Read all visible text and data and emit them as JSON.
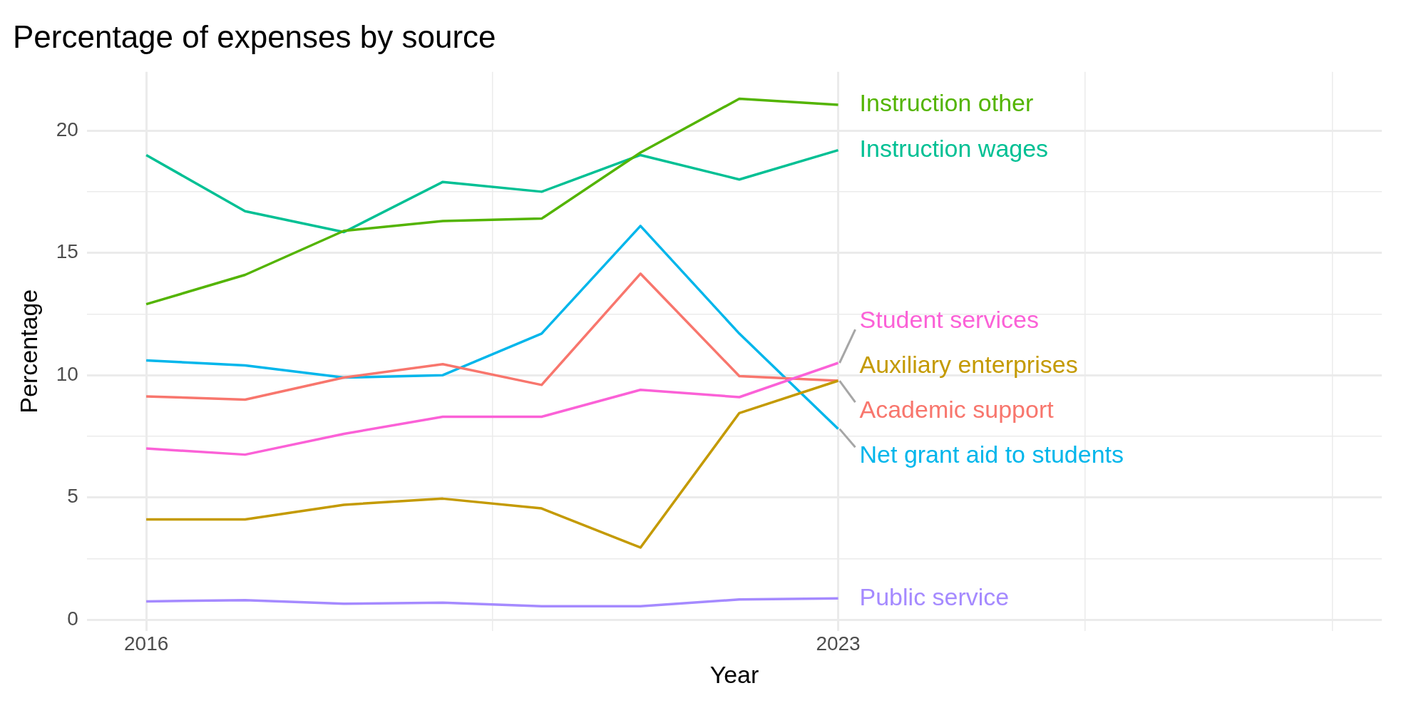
{
  "chart_data": {
    "type": "line",
    "title": "Percentage of expenses by source",
    "xlabel": "Year",
    "ylabel": "Percentage",
    "x": [
      2016,
      2017,
      2018,
      2019,
      2020,
      2021,
      2022,
      2023
    ],
    "xlim": [
      2015.4,
      2028.5
    ],
    "xticks": [
      2016,
      {
        "value": 2019.5,
        "label": null
      },
      2023,
      {
        "value": 2025.5,
        "label": null
      },
      {
        "value": 2028,
        "label": null
      }
    ],
    "ylim": [
      -0.45,
      22.4
    ],
    "yticks": [
      0,
      {
        "value": 2.5,
        "label": null
      },
      5,
      {
        "value": 7.5,
        "label": null
      },
      10,
      {
        "value": 12.5,
        "label": null
      },
      15,
      {
        "value": 17.5,
        "label": null
      },
      20
    ],
    "grid": true,
    "legend": false,
    "marker": "none",
    "line_style": "solid",
    "series": [
      {
        "name": "Instruction other",
        "color": "#53b400",
        "values": [
          12.9,
          14.1,
          15.9,
          16.3,
          16.4,
          19.1,
          21.3,
          21.05
        ]
      },
      {
        "name": "Instruction wages",
        "color": "#00c094",
        "values": [
          19.0,
          16.7,
          15.85,
          17.9,
          17.5,
          19.0,
          18.0,
          19.2
        ]
      },
      {
        "name": "Student services",
        "color": "#fb61d7",
        "values": [
          7.0,
          6.75,
          7.6,
          8.3,
          8.3,
          9.4,
          9.1,
          10.5
        ]
      },
      {
        "name": "Auxiliary enterprises",
        "color": "#c49a00",
        "values": [
          4.1,
          4.1,
          4.7,
          4.95,
          4.55,
          2.95,
          8.45,
          9.77
        ]
      },
      {
        "name": "Academic support",
        "color": "#f8766d",
        "values": [
          9.13,
          9.0,
          9.9,
          10.45,
          9.6,
          14.15,
          9.96,
          9.77
        ]
      },
      {
        "name": "Net grant aid to students",
        "color": "#00b6eb",
        "values": [
          10.6,
          10.4,
          9.9,
          10.0,
          11.7,
          16.1,
          11.7,
          7.8
        ]
      },
      {
        "name": "Public service",
        "color": "#a58aff",
        "values": [
          0.75,
          0.8,
          0.65,
          0.7,
          0.55,
          0.55,
          0.83,
          0.87
        ]
      }
    ]
  }
}
